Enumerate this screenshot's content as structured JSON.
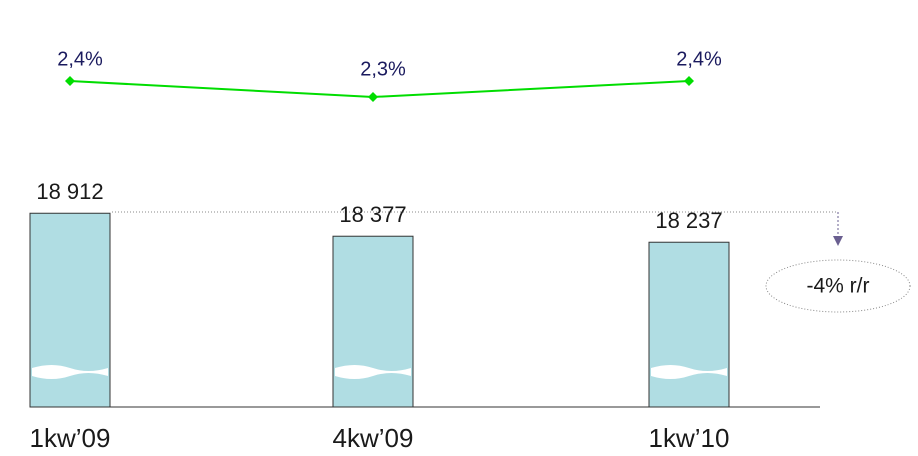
{
  "chart_data": [
    {
      "type": "bar",
      "categories": [
        "1kw’09",
        "4kw’09",
        "1kw’10"
      ],
      "values": [
        18912,
        18377,
        18237
      ],
      "value_labels": [
        "18 912",
        "18 377",
        "18 237"
      ],
      "color": "#b0dde3",
      "ylim": [
        14400,
        19500
      ],
      "annotation": "-4% r/r"
    },
    {
      "type": "line",
      "values": [
        2.4,
        2.3,
        2.4
      ],
      "value_labels": [
        "2,4%",
        "2,3%",
        "2,4%"
      ],
      "color": "#00dd00",
      "ylim": [
        2.0,
        2.6
      ]
    }
  ]
}
